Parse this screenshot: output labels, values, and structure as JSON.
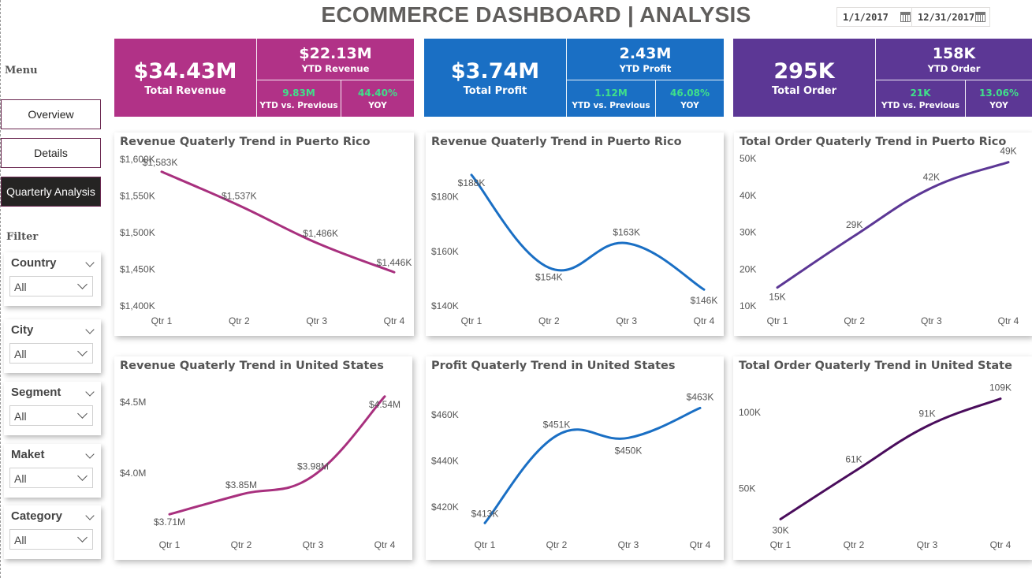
{
  "header": {
    "title": "ECOMMERCE DASHBOARD | ANALYSIS",
    "date_start": "1/1/2017",
    "date_end": "12/31/2017"
  },
  "sidebar": {
    "menu_label": "Menu",
    "nav": [
      {
        "label": "Overview",
        "active": false
      },
      {
        "label": "Details",
        "active": false
      },
      {
        "label": "Quarterly Analysis",
        "active": true
      }
    ],
    "filter_label": "Filter",
    "slicers": [
      {
        "label": "Country",
        "value": "All"
      },
      {
        "label": "City",
        "value": "All"
      },
      {
        "label": "Segment",
        "value": "All"
      },
      {
        "label": "Maket",
        "value": "All"
      },
      {
        "label": "Category",
        "value": "All"
      }
    ]
  },
  "kpis": [
    {
      "color": "#b13287",
      "value": "$34.43M",
      "label": "Total Revenue",
      "ytd_value": "$22.13M",
      "ytd_label": "YTD Revenue",
      "vs_value": "9.83M",
      "vs_label": "YTD vs. Previous",
      "yoy_value": "44.40%",
      "yoy_label": "YOY"
    },
    {
      "color": "#1a6fc4",
      "value": "$3.74M",
      "label": "Total Profit",
      "ytd_value": "2.43M",
      "ytd_label": "YTD Profit",
      "vs_value": "1.12M",
      "vs_label": "YTD vs. Previous",
      "yoy_value": "46.08%",
      "yoy_label": "YOY"
    },
    {
      "color": "#5c3795",
      "value": "295K",
      "label": "Total Order",
      "ytd_value": "158K",
      "ytd_label": "YTD Order",
      "vs_value": "21K",
      "vs_label": "YTD vs. Previous",
      "yoy_value": "13.06%",
      "yoy_label": "YOY"
    }
  ],
  "chart_data": [
    {
      "type": "line",
      "title": "Revenue Quaterly Trend in Puerto Rico",
      "categories": [
        "Qtr 1",
        "Qtr 2",
        "Qtr 3",
        "Qtr 4"
      ],
      "values": [
        1583,
        1537,
        1486,
        1446
      ],
      "labels": [
        "$1,583K",
        "$1,537K",
        "$1,486K",
        "$1,446K"
      ],
      "yticks": [
        "$1,600K",
        "$1,550K",
        "$1,500K",
        "$1,450K",
        "$1,400K"
      ],
      "ytick_values": [
        1600,
        1550,
        1500,
        1450,
        1400
      ],
      "ylim": [
        1400,
        1600
      ],
      "color": "#a8307e",
      "grid": false
    },
    {
      "type": "line",
      "title": "Revenue Quaterly Trend in Puerto Rico",
      "categories": [
        "Qtr 1",
        "Qtr 2",
        "Qtr 3",
        "Qtr 4"
      ],
      "values": [
        188,
        154,
        163,
        146
      ],
      "labels": [
        "$188K",
        "$154K",
        "$163K",
        "$146K"
      ],
      "yticks": [
        "$180K",
        "$160K",
        "$140K"
      ],
      "ytick_values": [
        180,
        160,
        140
      ],
      "ylim": [
        140,
        192
      ],
      "color": "#1a6fc4",
      "grid": false
    },
    {
      "type": "line",
      "title": "Total Order Quaterly Trend in Puerto Rico",
      "categories": [
        "Qtr 1",
        "Qtr 2",
        "Qtr 3",
        "Qtr 4"
      ],
      "values": [
        15,
        29,
        42,
        49
      ],
      "labels": [
        "15K",
        "29K",
        "42K",
        "49K"
      ],
      "yticks": [
        "50K",
        "40K",
        "30K",
        "20K",
        "10K"
      ],
      "ytick_values": [
        50,
        40,
        30,
        20,
        10
      ],
      "ylim": [
        10,
        50
      ],
      "color": "#5c3795",
      "grid": false
    },
    {
      "type": "line",
      "title": "Revenue Quaterly Trend in United States",
      "categories": [
        "Qtr 1",
        "Qtr 2",
        "Qtr 3",
        "Qtr 4"
      ],
      "values": [
        3.71,
        3.85,
        3.98,
        4.54
      ],
      "labels": [
        "$3.71M",
        "$3.85M",
        "$3.98M",
        "$4.54M"
      ],
      "yticks": [
        "$4.5M",
        "$4.0M"
      ],
      "ytick_values": [
        4.5,
        4.0
      ],
      "ylim": [
        3.6,
        4.6
      ],
      "color": "#a8307e",
      "grid": false
    },
    {
      "type": "line",
      "title": "Profit Quaterly Trend in United States",
      "categories": [
        "Qtr 1",
        "Qtr 2",
        "Qtr 3",
        "Qtr 4"
      ],
      "values": [
        413,
        451,
        450,
        463
      ],
      "labels": [
        "$413K",
        "$451K",
        "$450K",
        "$463K"
      ],
      "yticks": [
        "$460K",
        "$440K",
        "$420K"
      ],
      "ytick_values": [
        460,
        440,
        420
      ],
      "ylim": [
        410,
        470
      ],
      "color": "#1a6fc4",
      "grid": false
    },
    {
      "type": "line",
      "title": "Total Order Quaterly Trend in United State",
      "categories": [
        "Qtr 1",
        "Qtr 2",
        "Qtr 3",
        "Qtr 4"
      ],
      "values": [
        30,
        61,
        91,
        109
      ],
      "labels": [
        "30K",
        "61K",
        "91K",
        "109K"
      ],
      "yticks": [
        "100K",
        "50K"
      ],
      "ytick_values": [
        100,
        50
      ],
      "ylim": [
        25,
        115
      ],
      "color": "#4a0d5c",
      "grid": false
    }
  ]
}
